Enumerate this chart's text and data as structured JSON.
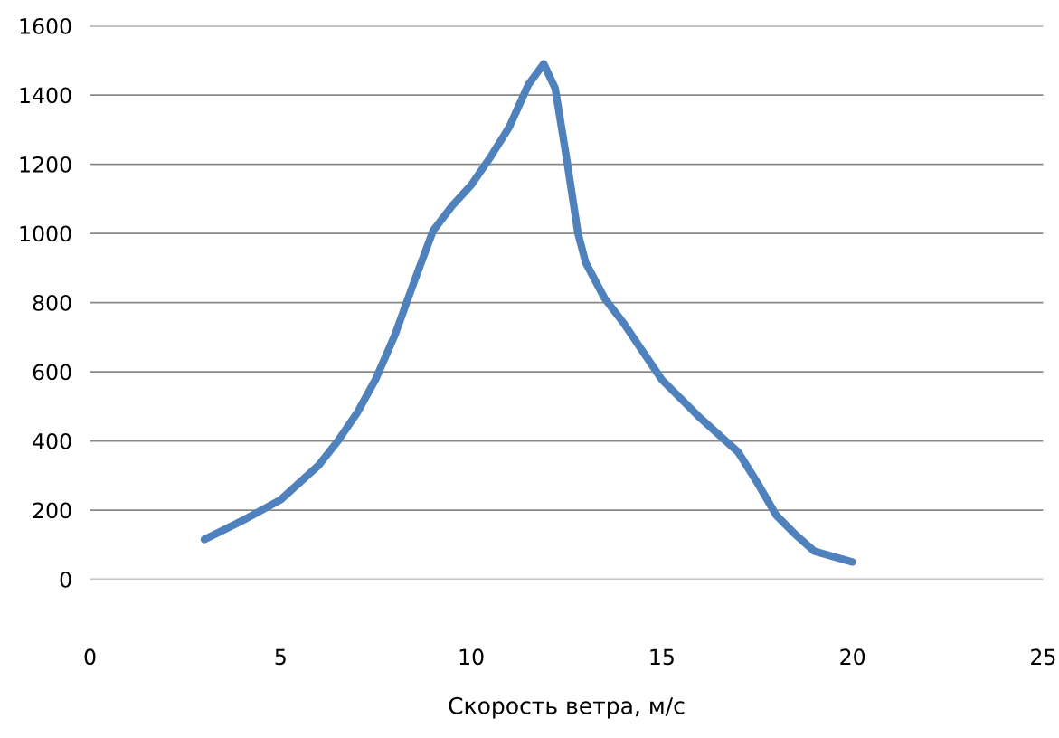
{
  "chart_data": {
    "type": "line",
    "xlabel": "Скорость ветра, м/с",
    "xlim": [
      0,
      25
    ],
    "xticks": [
      0,
      5,
      10,
      15,
      20,
      25
    ],
    "ylim": [
      0,
      1600
    ],
    "yticks": [
      0,
      200,
      400,
      600,
      800,
      1000,
      1200,
      1400,
      1600
    ],
    "grid": "y",
    "line_style": "solid",
    "series": [
      {
        "color": "#4f81bd",
        "x": [
          3,
          4,
          5,
          6,
          6.5,
          7,
          7.5,
          8,
          8.5,
          9,
          9.5,
          10,
          10.5,
          11,
          11.5,
          11.9,
          12.2,
          12.5,
          12.8,
          13,
          13.5,
          14,
          15,
          16,
          17,
          17.5,
          18,
          18.5,
          19,
          20
        ],
        "values": [
          115,
          170,
          230,
          330,
          400,
          480,
          580,
          707,
          860,
          1008,
          1080,
          1140,
          1220,
          1308,
          1430,
          1490,
          1420,
          1217,
          1000,
          916,
          812,
          740,
          577,
          467,
          368,
          280,
          185,
          130,
          81,
          50
        ]
      }
    ]
  }
}
